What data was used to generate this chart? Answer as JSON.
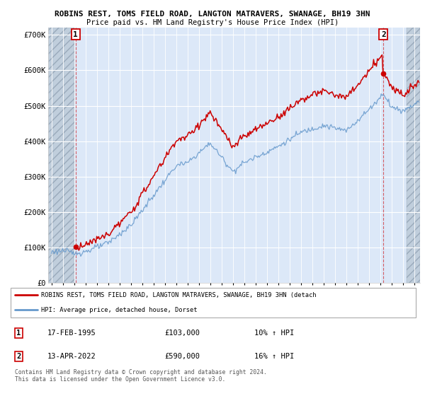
{
  "title1": "ROBINS REST, TOMS FIELD ROAD, LANGTON MATRAVERS, SWANAGE, BH19 3HN",
  "title2": "Price paid vs. HM Land Registry's House Price Index (HPI)",
  "ylim": [
    0,
    720000
  ],
  "yticks": [
    0,
    100000,
    200000,
    300000,
    400000,
    500000,
    600000,
    700000
  ],
  "ytick_labels": [
    "£0",
    "£100K",
    "£200K",
    "£300K",
    "£400K",
    "£500K",
    "£600K",
    "£700K"
  ],
  "hpi_color": "#6699cc",
  "price_color": "#cc0000",
  "sale1_year": 1995.13,
  "sale1_price": 103000,
  "sale2_year": 2022.28,
  "sale2_price": 590000,
  "legend_line1": "ROBINS REST, TOMS FIELD ROAD, LANGTON MATRAVERS, SWANAGE, BH19 3HN (detach",
  "legend_line2": "HPI: Average price, detached house, Dorset",
  "table_row1": [
    "1",
    "17-FEB-1995",
    "£103,000",
    "10% ↑ HPI"
  ],
  "table_row2": [
    "2",
    "13-APR-2022",
    "£590,000",
    "16% ↑ HPI"
  ],
  "footer": "Contains HM Land Registry data © Crown copyright and database right 2024.\nThis data is licensed under the Open Government Licence v3.0.",
  "plot_bg_color": "#dce8f8",
  "hatch_color": "#c0cedc",
  "xlim_left": 1992.7,
  "xlim_right": 2025.5,
  "hatch_left_end": 1995.0,
  "hatch_right_start": 2024.3
}
